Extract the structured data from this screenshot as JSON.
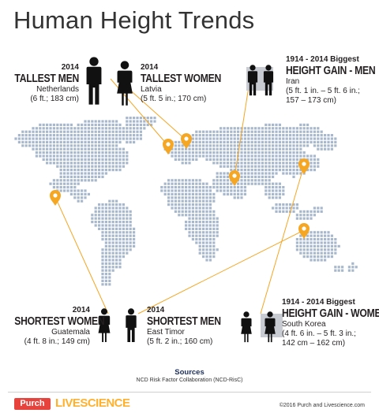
{
  "title": "Human Height Trends",
  "groups": {
    "tallest_men": {
      "year": "2014",
      "category": "TALLEST MEN",
      "country": "Netherlands",
      "measure": "(6 ft.; 183 cm)"
    },
    "tallest_women": {
      "year": "2014",
      "category": "TALLEST WOMEN",
      "country": "Latvia",
      "measure": "(5 ft. 5 in.; 170 cm)"
    },
    "gain_men": {
      "year": "1914 - 2014 Biggest",
      "category": "HEIGHT GAIN - MEN",
      "country": "Iran",
      "measure_line1": "(5 ft. 1 in. – 5 ft. 6 in.;",
      "measure_line2": "157  – 173 cm)"
    },
    "shortest_women": {
      "year": "2014",
      "category": "SHORTEST WOMEN",
      "country": "Guatemala",
      "measure": "(4 ft. 8 in.; 149 cm)"
    },
    "shortest_men": {
      "year": "2014",
      "category": "SHORTEST MEN",
      "country": "East Timor",
      "measure": "(5 ft. 2 in.; 160 cm)"
    },
    "gain_women": {
      "year": "1914 - 2014 Biggest",
      "category": "HEIGHT GAIN - WOMEN",
      "country": "South Korea",
      "measure_line1": "(4 ft. 6 in. – 5 ft. 3 in.;",
      "measure_line2": "142 cm  – 162 cm)"
    }
  },
  "sources": {
    "title": "Sources",
    "text": "NCD Risk Factor Collaboration (NCD-RisC)"
  },
  "footer": {
    "purch": "Purch",
    "livescience": "LIVESCIENCE",
    "copyright": "©2016 Purch and Livescience.com"
  },
  "colors": {
    "pin": "#f5a623",
    "line": "#f5a623",
    "map_dots": "#a8b8cc",
    "figure": "#111111",
    "highlight_box": "#c8ccd2"
  },
  "icons": [
    "man-icon",
    "woman-icon",
    "map-pin-icon"
  ]
}
